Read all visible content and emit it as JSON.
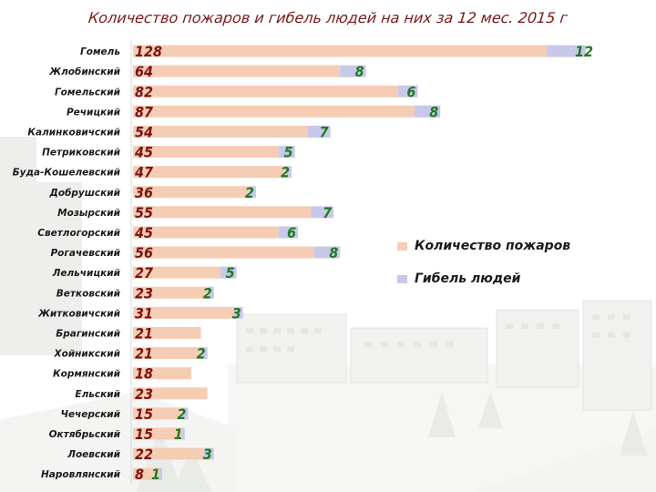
{
  "title": "Количество пожаров  и гибель людей  на них за 12 мес. 2015  г",
  "colors": {
    "fires": "#f5cdb5",
    "deaths": "#c8c8ea",
    "fire_label": "#7a1414",
    "death_label": "#1f7a1f",
    "title": "#7a1a1a"
  },
  "legend": {
    "fires_label": "Количество пожаров",
    "deaths_label": "Гибель людей"
  },
  "chart_data": {
    "type": "bar",
    "orientation": "horizontal",
    "stacked": true,
    "title": "Количество пожаров  и гибель людей  на них за 12 мес. 2015  г",
    "categories": [
      "Гомель",
      "Жлобинский",
      "Гомельский",
      "Речицкий",
      "Калинковичский",
      "Петриковский",
      "Буда-Кошелевский",
      "Добрушский",
      "Мозырский",
      "Светлогорский",
      "Рогачевский",
      "Лельчицкий",
      "Ветковский",
      "Житковичский",
      "Брагинский",
      "Хойникский",
      "Кормянский",
      "Ельский",
      "Чечерский",
      "Октябрьский",
      "Лоевский",
      "Наровлянский"
    ],
    "series": [
      {
        "name": "Количество пожаров",
        "values": [
          128,
          64,
          82,
          87,
          54,
          45,
          47,
          36,
          55,
          45,
          56,
          27,
          23,
          31,
          21,
          21,
          18,
          23,
          15,
          15,
          22,
          8
        ]
      },
      {
        "name": "Гибель людей",
        "values": [
          12,
          8,
          6,
          8,
          7,
          5,
          2,
          2,
          7,
          6,
          8,
          5,
          2,
          3,
          null,
          2,
          null,
          null,
          2,
          1,
          3,
          1
        ]
      }
    ],
    "legend_position": "right",
    "grid": false
  }
}
